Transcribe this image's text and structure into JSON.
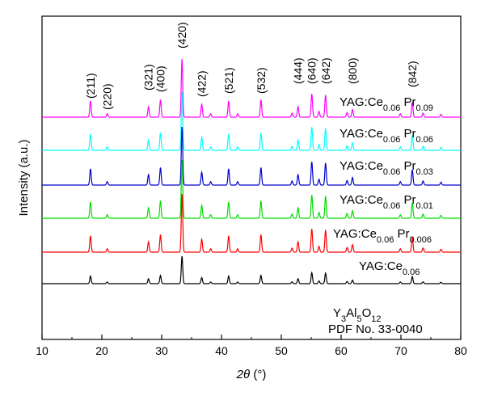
{
  "chart_data": {
    "type": "line",
    "title": "",
    "xlabel": "2θ (°)",
    "ylabel": "Intensity (a.u.)",
    "xlim": [
      10,
      80
    ],
    "xticks": [
      10,
      20,
      30,
      40,
      50,
      60,
      70,
      80
    ],
    "legend": "none",
    "grid": false,
    "peaks": [
      {
        "x": 18.1,
        "h": 0.28
      },
      {
        "x": 20.9,
        "h": 0.06
      },
      {
        "x": 27.8,
        "h": 0.18
      },
      {
        "x": 29.8,
        "h": 0.3
      },
      {
        "x": 33.4,
        "h": 1.0
      },
      {
        "x": 36.7,
        "h": 0.22
      },
      {
        "x": 38.2,
        "h": 0.06
      },
      {
        "x": 41.2,
        "h": 0.28
      },
      {
        "x": 42.7,
        "h": 0.06
      },
      {
        "x": 46.6,
        "h": 0.3
      },
      {
        "x": 51.8,
        "h": 0.07
      },
      {
        "x": 52.8,
        "h": 0.18
      },
      {
        "x": 55.1,
        "h": 0.4
      },
      {
        "x": 56.3,
        "h": 0.1
      },
      {
        "x": 57.4,
        "h": 0.38
      },
      {
        "x": 61.0,
        "h": 0.08
      },
      {
        "x": 61.9,
        "h": 0.13
      },
      {
        "x": 69.9,
        "h": 0.06
      },
      {
        "x": 71.9,
        "h": 0.26
      },
      {
        "x": 73.7,
        "h": 0.07
      },
      {
        "x": 76.7,
        "h": 0.05
      }
    ],
    "series": [
      {
        "name_parts": [
          "YAG:Ce",
          "0.06",
          " Pr",
          "0.09"
        ],
        "color": "#ff00ff",
        "baseline": 6,
        "scale": 1.0
      },
      {
        "name_parts": [
          "YAG:Ce",
          "0.06",
          " Pr",
          "0.06"
        ],
        "color": "#00ffff",
        "baseline": 5,
        "scale": 1.0
      },
      {
        "name_parts": [
          "YAG:Ce",
          "0.06",
          " Pr",
          "0.03"
        ],
        "color": "#0000cc",
        "baseline": 4,
        "scale": 1.0
      },
      {
        "name_parts": [
          "YAG:Ce",
          "0.06",
          " Pr",
          "0.01"
        ],
        "color": "#00dd00",
        "baseline": 3,
        "scale": 1.0
      },
      {
        "name_parts": [
          "YAG:Ce",
          "0.06",
          " Pr",
          "0.006"
        ],
        "color": "#ff0000",
        "baseline": 2,
        "scale": 1.0
      },
      {
        "name_parts": [
          "YAG:Ce",
          "0.06",
          "",
          ""
        ],
        "color": "#000000",
        "baseline": 1,
        "scale": 0.55
      }
    ],
    "reference": {
      "formula_parts": [
        "Y",
        "3",
        "Al",
        "5",
        "O",
        "12"
      ],
      "card": "PDF No. 33-0040"
    },
    "peak_labels": [
      {
        "text": "(211)",
        "x": 18.1
      },
      {
        "text": "(220)",
        "x": 20.9
      },
      {
        "text": "(321)",
        "x": 27.8
      },
      {
        "text": "(400)",
        "x": 29.8
      },
      {
        "text": "(420)",
        "x": 33.4
      },
      {
        "text": "(422)",
        "x": 36.7
      },
      {
        "text": "(521)",
        "x": 41.2
      },
      {
        "text": "(532)",
        "x": 46.6
      },
      {
        "text": "(444)",
        "x": 52.8
      },
      {
        "text": "(640)",
        "x": 55.1
      },
      {
        "text": "(642)",
        "x": 57.4
      },
      {
        "text": "(800)",
        "x": 61.9
      },
      {
        "text": "(842)",
        "x": 71.9
      }
    ]
  }
}
